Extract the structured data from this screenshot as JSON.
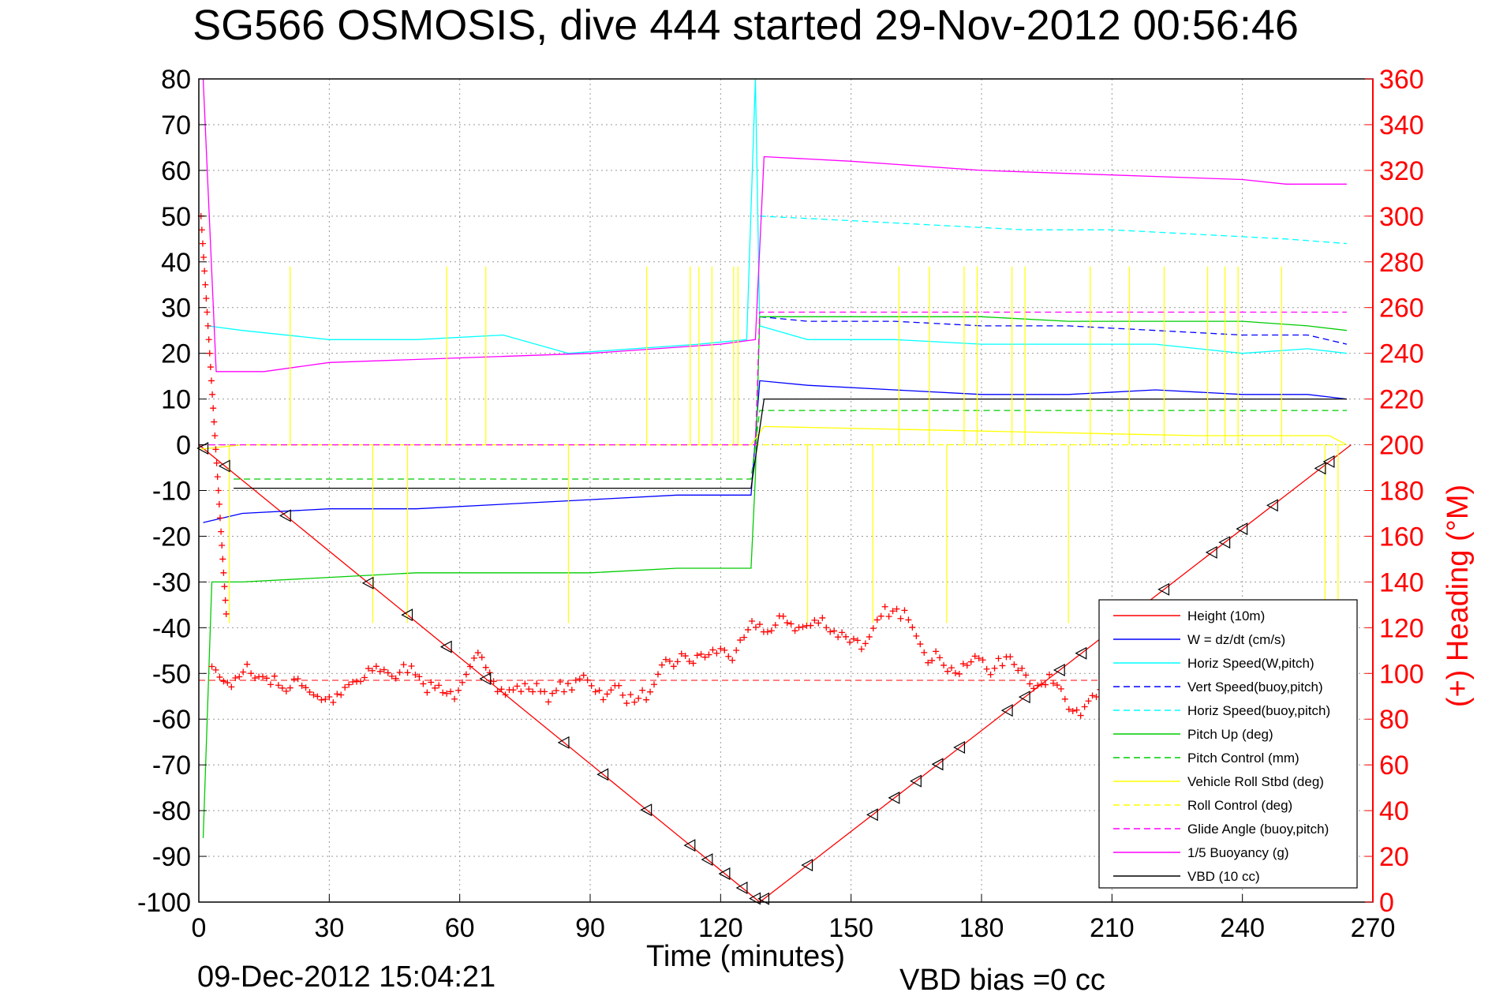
{
  "chart_data": {
    "type": "line",
    "title": "SG566 OSMOSIS, dive 444 started 29-Nov-2012 00:56:46",
    "xlabel": "Time (minutes)",
    "ylabel": "",
    "y2label": "(+) Heading (°M)",
    "xlim": [
      0,
      270
    ],
    "ylim": [
      -100,
      80
    ],
    "y2lim": [
      0,
      360
    ],
    "xticks": [
      0,
      30,
      60,
      90,
      120,
      150,
      180,
      210,
      240,
      270
    ],
    "yticks": [
      80,
      70,
      60,
      50,
      40,
      30,
      20,
      10,
      0,
      -10,
      -20,
      -30,
      -40,
      -50,
      -60,
      -70,
      -80,
      -90,
      -100
    ],
    "y2ticks": [
      360,
      340,
      320,
      300,
      280,
      260,
      240,
      220,
      200,
      180,
      160,
      140,
      120,
      100,
      80,
      60,
      40,
      20,
      0
    ],
    "grid": true,
    "legend_position": "bottom-right",
    "footer_left": "09-Dec-2012 15:04:21",
    "footer_right": "VBD bias =0 cc",
    "series": [
      {
        "name": "Height (10m)",
        "color": "#ff0000",
        "style": "solid",
        "x": [
          0,
          129,
          265
        ],
        "y": [
          0,
          -100,
          0
        ]
      },
      {
        "name": "W = dz/dt (cm/s)",
        "color": "#0000ff",
        "style": "solid",
        "x": [
          1,
          10,
          30,
          50,
          70,
          90,
          110,
          127,
          129,
          140,
          160,
          180,
          200,
          220,
          240,
          255,
          264
        ],
        "y": [
          -17,
          -15,
          -14,
          -14,
          -13,
          -12,
          -11,
          -11,
          14,
          13,
          12,
          11,
          11,
          12,
          11,
          11,
          10
        ]
      },
      {
        "name": "Horiz Speed(W,pitch)",
        "color": "#00ffff",
        "style": "solid",
        "x": [
          2,
          10,
          30,
          50,
          70,
          85,
          100,
          115,
          126,
          128,
          129,
          140,
          160,
          180,
          200,
          220,
          240,
          255,
          264
        ],
        "y": [
          26,
          25,
          23,
          23,
          24,
          20,
          21,
          22,
          23,
          80,
          26,
          23,
          23,
          22,
          22,
          22,
          20,
          21,
          20
        ]
      },
      {
        "name": "Vert Speed(buoy,pitch)",
        "color": "#0000ff",
        "style": "dashed",
        "x": [
          129,
          140,
          160,
          180,
          200,
          220,
          240,
          255,
          264
        ],
        "y": [
          28,
          27,
          27,
          26,
          26,
          25,
          24,
          24,
          22
        ]
      },
      {
        "name": "Horiz Speed(buoy,pitch)",
        "color": "#00ffff",
        "style": "dashed",
        "x": [
          129,
          150,
          170,
          190,
          210,
          230,
          250,
          264
        ],
        "y": [
          50,
          49,
          48,
          47,
          47,
          46,
          45,
          44
        ]
      },
      {
        "name": "Pitch Up (deg)",
        "color": "#00cc00",
        "style": "solid",
        "x": [
          1,
          3,
          10,
          30,
          50,
          70,
          90,
          110,
          127,
          128,
          129,
          140,
          160,
          180,
          200,
          220,
          240,
          255,
          264
        ],
        "y": [
          -86,
          -30,
          -30,
          -29,
          -28,
          -28,
          -28,
          -27,
          -27,
          -7,
          28,
          28,
          28,
          28,
          27,
          27,
          27,
          26,
          25
        ]
      },
      {
        "name": "Pitch Control (mm)",
        "color": "#00cc00",
        "style": "dashed",
        "x": [
          8,
          127,
          129,
          264
        ],
        "y": [
          -7.5,
          -7.5,
          7.5,
          7.5
        ]
      },
      {
        "name": "Vehicle Roll Stbd (deg)",
        "color": "#ffff00",
        "style": "solid",
        "x": [
          0,
          10,
          60,
          120,
          127,
          130,
          180,
          230,
          260,
          264
        ],
        "y": [
          -1,
          0,
          0,
          0,
          0,
          4,
          3,
          2,
          2,
          0
        ]
      },
      {
        "name": "Roll Control (deg)",
        "color": "#ffff00",
        "style": "dashed",
        "x": [
          0,
          264
        ],
        "y": [
          0,
          0
        ]
      },
      {
        "name": "Glide Angle (buoy,pitch)",
        "color": "#ff00ff",
        "style": "dashed",
        "x": [
          0,
          128,
          129,
          264
        ],
        "y": [
          0,
          0,
          29,
          29
        ]
      },
      {
        "name": "1/5 Buoyancy (g)",
        "color": "#ff00ff",
        "style": "solid",
        "x": [
          1,
          4,
          10,
          15,
          30,
          60,
          90,
          120,
          128,
          130,
          150,
          180,
          210,
          240,
          250,
          264
        ],
        "y": [
          80,
          16,
          16,
          16,
          18,
          19,
          20,
          22,
          23,
          63,
          62,
          60,
          59,
          58,
          57,
          57
        ]
      },
      {
        "name": "VBD (10 cc)",
        "color": "#000000",
        "style": "solid",
        "x": [
          8,
          127,
          130,
          264
        ],
        "y": [
          -9.5,
          -9.5,
          10,
          10
        ]
      }
    ]
  }
}
